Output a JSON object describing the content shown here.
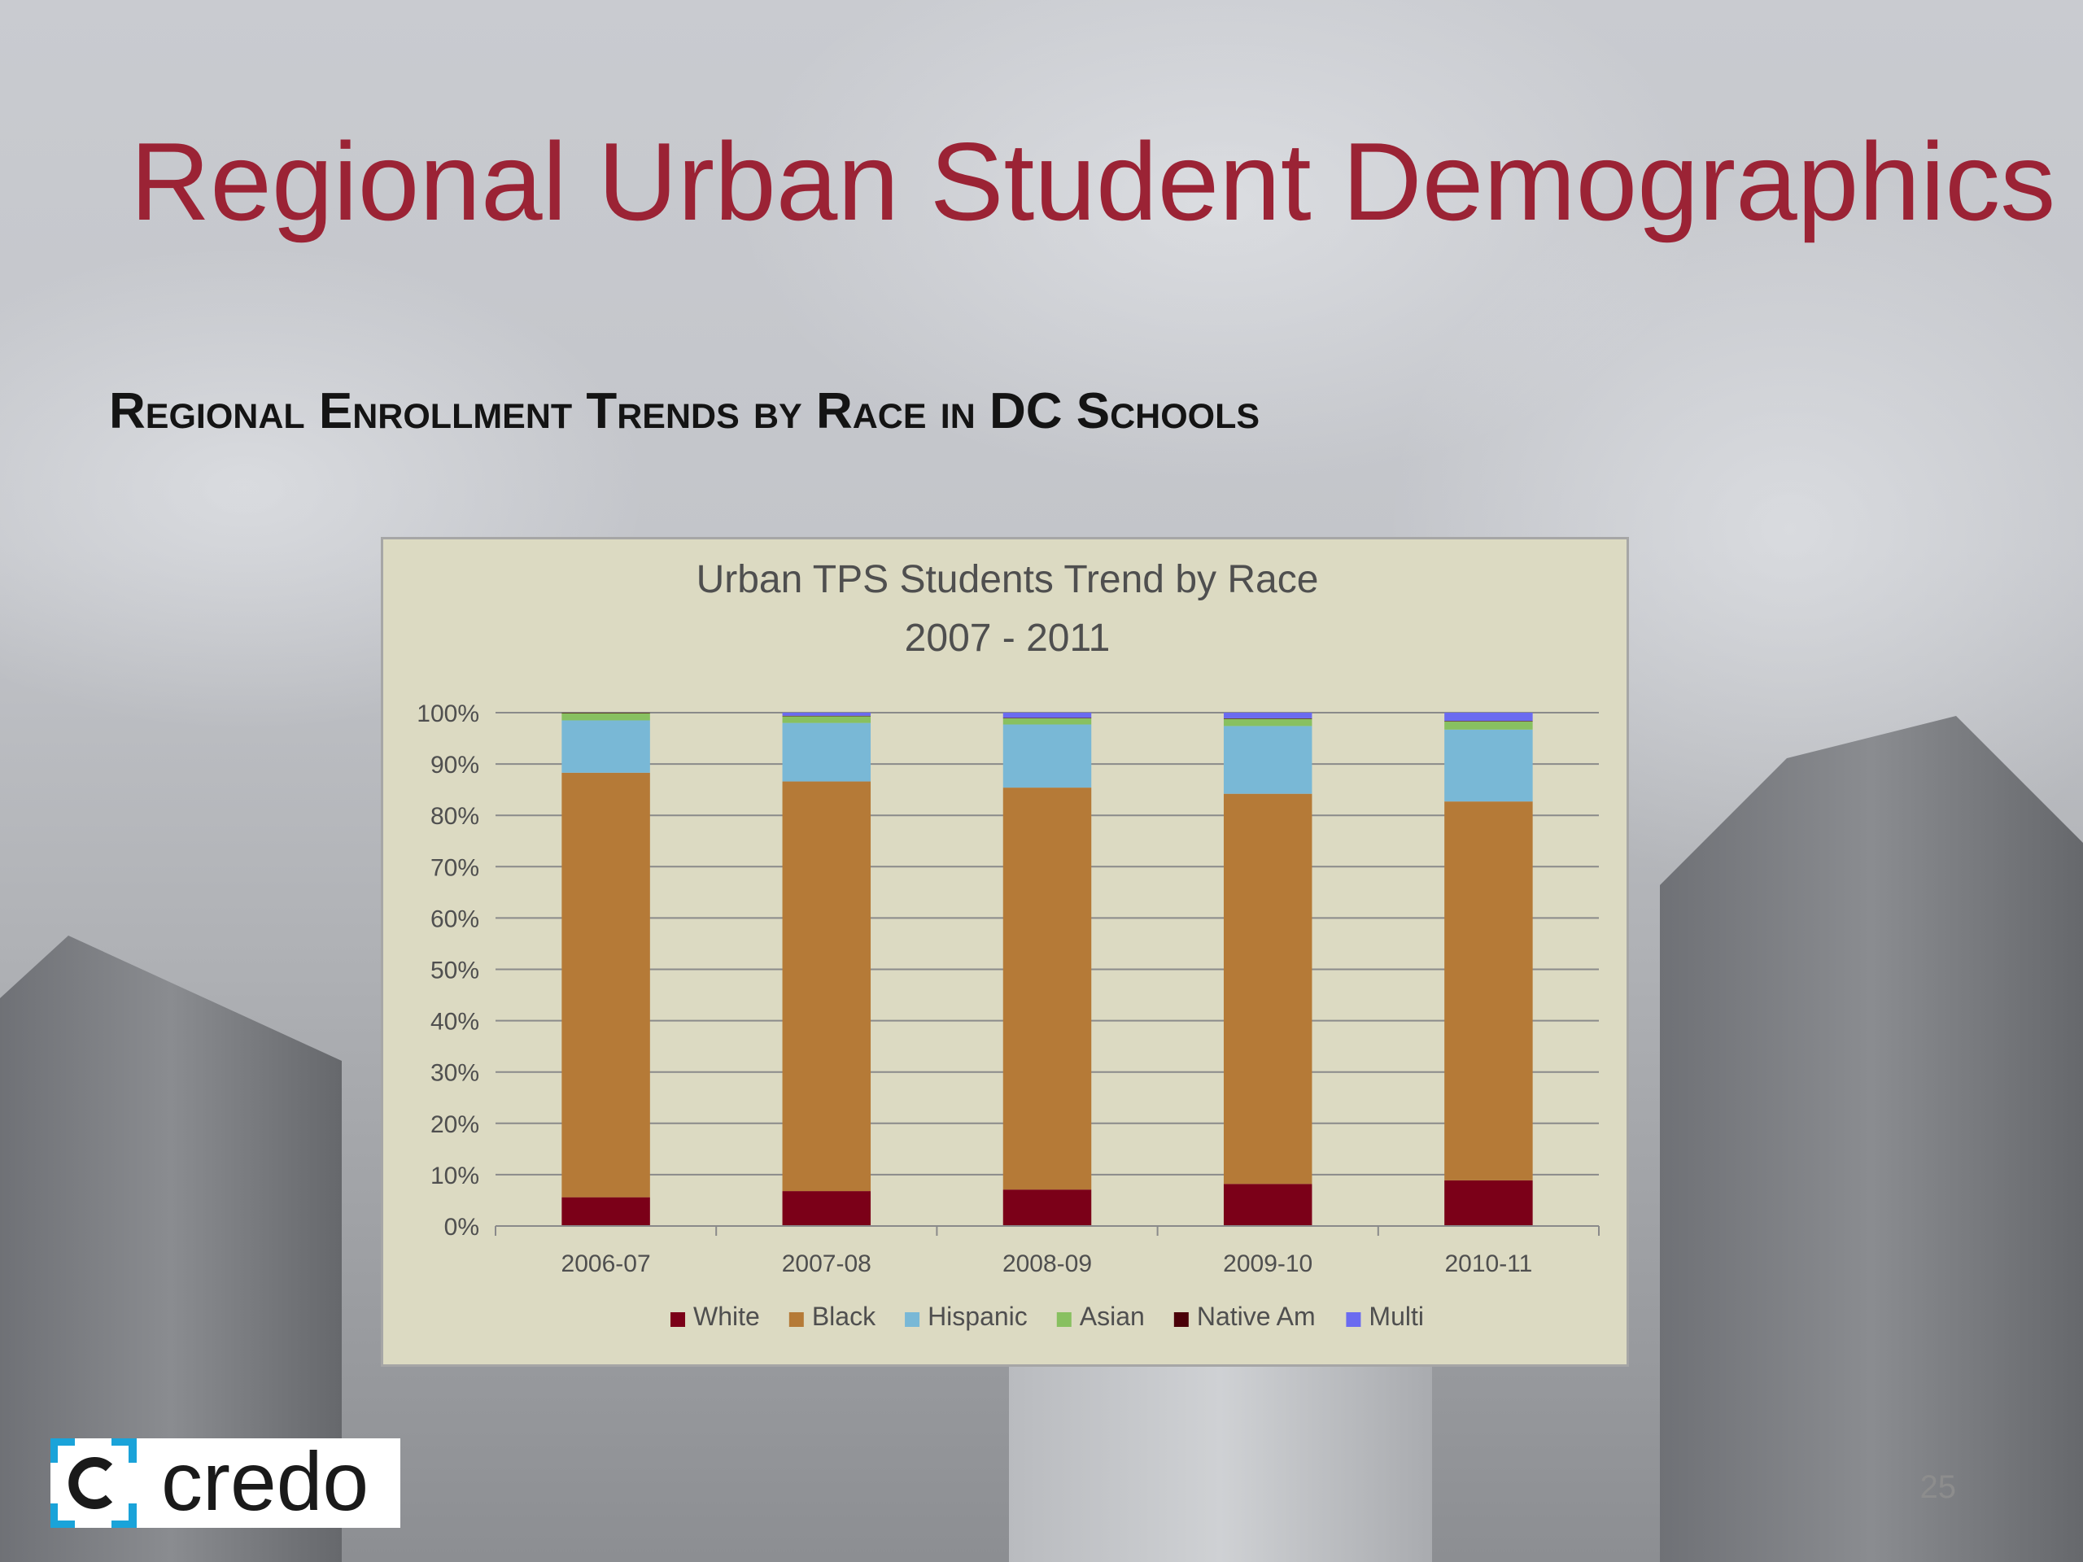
{
  "slide": {
    "title": "Regional Urban Student Demographics",
    "subtitle": "Regional Enrollment Trends by Race in DC Schools",
    "page_number": "25",
    "logo_text": "credo"
  },
  "colors": {
    "title": "#9b2335",
    "chart_background": "#dcdac2",
    "White": "#7b0018",
    "Black": "#b57a37",
    "Hispanic": "#79b8d6",
    "Asian": "#88c060",
    "Native Am": "#4a0008",
    "Multi": "#6b6bf0",
    "logo_accent": "#1aa3d9"
  },
  "chart_data": {
    "type": "bar",
    "stacked": "percent",
    "title": "Urban TPS Students Trend by Race",
    "subtitle": "2007 - 2011",
    "xlabel": "",
    "ylabel": "",
    "ylim": [
      0,
      100
    ],
    "yticks": [
      "0%",
      "10%",
      "20%",
      "30%",
      "40%",
      "50%",
      "60%",
      "70%",
      "80%",
      "90%",
      "100%"
    ],
    "grid": true,
    "legend_position": "bottom",
    "categories": [
      "2006-07",
      "2007-08",
      "2008-09",
      "2009-10",
      "2010-11"
    ],
    "series": [
      {
        "name": "White",
        "values": [
          5.6,
          6.8,
          7.1,
          8.2,
          8.9
        ]
      },
      {
        "name": "Black",
        "values": [
          82.7,
          79.8,
          78.3,
          76.0,
          73.8
        ]
      },
      {
        "name": "Hispanic",
        "values": [
          10.2,
          11.4,
          12.3,
          13.2,
          14.0
        ]
      },
      {
        "name": "Asian",
        "values": [
          1.4,
          1.3,
          1.2,
          1.4,
          1.6
        ]
      },
      {
        "name": "Native Am",
        "values": [
          0.1,
          0.1,
          0.1,
          0.1,
          0.1
        ]
      },
      {
        "name": "Multi",
        "values": [
          0.0,
          0.6,
          1.0,
          1.1,
          1.6
        ]
      }
    ]
  }
}
